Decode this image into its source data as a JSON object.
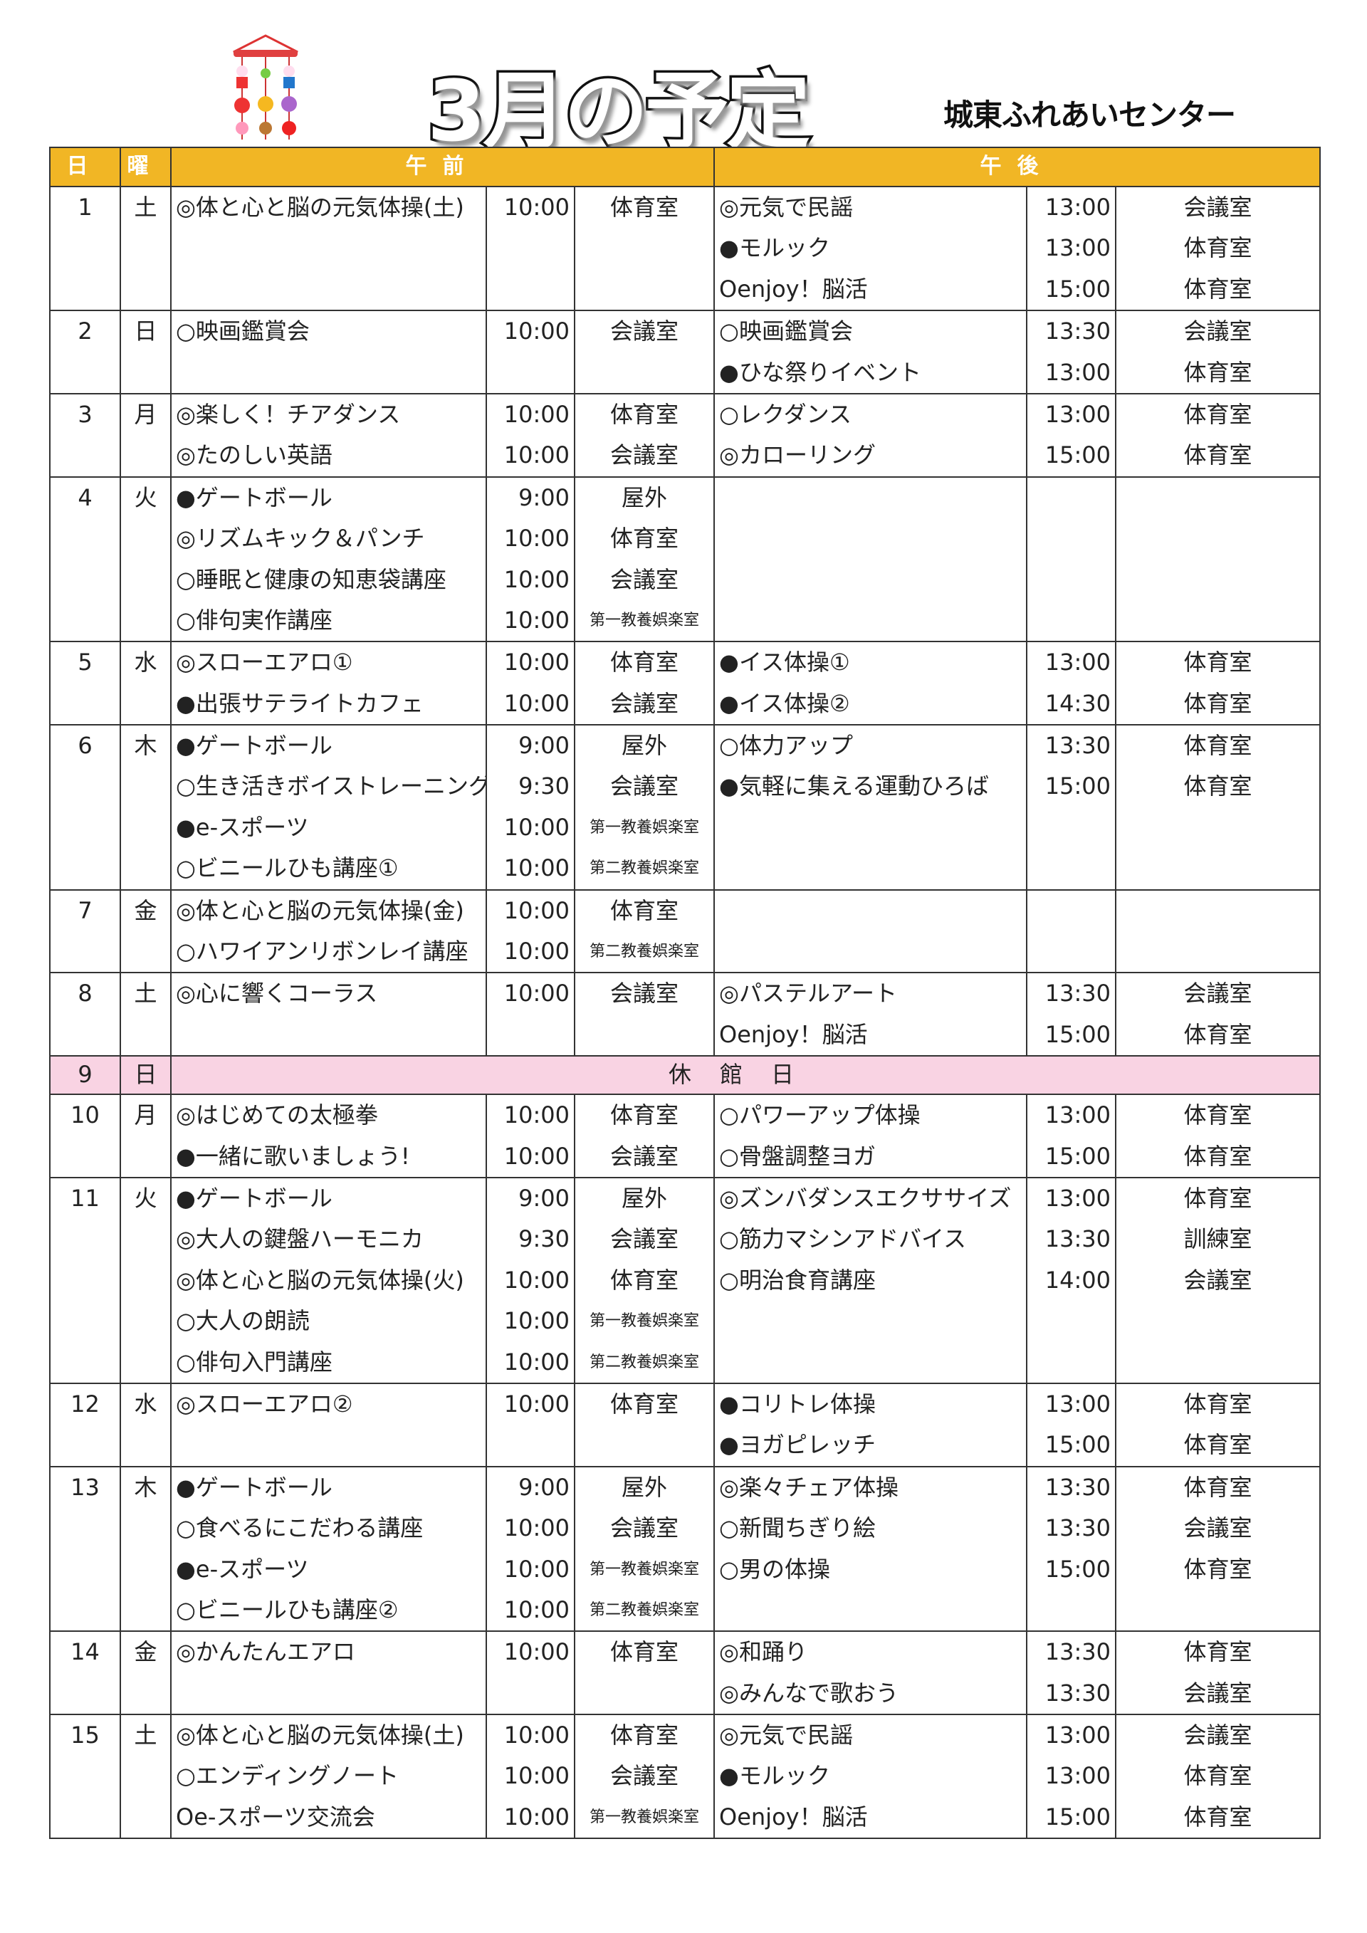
{
  "header": {
    "title": "3月の予定",
    "facility": "城東ふれあいセンター"
  },
  "colors": {
    "header_bg": "#F1B625",
    "closed_bg": "#F9D3E3"
  },
  "columns": {
    "day": "日",
    "dow": "曜",
    "am": "午前",
    "pm": "午後"
  },
  "rows": [
    {
      "day": "1",
      "dow": "土",
      "am": [
        [
          "◎体と心と脳の元気体操(土)",
          "10:00",
          "体育室"
        ]
      ],
      "pm": [
        [
          "◎元気で民謡",
          "13:00",
          "会議室"
        ],
        [
          "●モルック",
          "13:00",
          "体育室"
        ],
        [
          "Oenjoy！脳活",
          "15:00",
          "体育室"
        ]
      ]
    },
    {
      "day": "2",
      "dow": "日",
      "am": [
        [
          "○映画鑑賞会",
          "10:00",
          "会議室"
        ]
      ],
      "pm": [
        [
          "○映画鑑賞会",
          "13:30",
          "会議室"
        ],
        [
          "●ひな祭りイベント",
          "13:00",
          "体育室"
        ]
      ]
    },
    {
      "day": "3",
      "dow": "月",
      "am": [
        [
          "◎楽しく！チアダンス",
          "10:00",
          "体育室"
        ],
        [
          "◎たのしい英語",
          "10:00",
          "会議室"
        ]
      ],
      "pm": [
        [
          "○レクダンス",
          "13:00",
          "体育室"
        ],
        [
          "◎カローリング",
          "15:00",
          "体育室"
        ]
      ]
    },
    {
      "day": "4",
      "dow": "火",
      "am": [
        [
          "●ゲートボール",
          "9:00",
          "屋外"
        ],
        [
          "◎リズムキック＆パンチ",
          "10:00",
          "体育室"
        ],
        [
          "○睡眠と健康の知恵袋講座",
          "10:00",
          "会議室"
        ],
        [
          "○俳句実作講座",
          "10:00",
          "第一教養娯楽室"
        ]
      ],
      "pm": []
    },
    {
      "day": "5",
      "dow": "水",
      "am": [
        [
          "◎スローエアロ①",
          "10:00",
          "体育室"
        ],
        [
          "●出張サテライトカフェ",
          "10:00",
          "会議室"
        ]
      ],
      "pm": [
        [
          "●イス体操①",
          "13:00",
          "体育室"
        ],
        [
          "●イス体操②",
          "14:30",
          "体育室"
        ]
      ]
    },
    {
      "day": "6",
      "dow": "木",
      "am": [
        [
          "●ゲートボール",
          "9:00",
          "屋外"
        ],
        [
          "○生き活きボイストレーニング",
          "9:30",
          "会議室"
        ],
        [
          "●e-スポーツ",
          "10:00",
          "第一教養娯楽室"
        ],
        [
          "○ビニールひも講座①",
          "10:00",
          "第二教養娯楽室"
        ]
      ],
      "pm": [
        [
          "○体力アップ",
          "13:30",
          "体育室"
        ],
        [
          "●気軽に集える運動ひろば",
          "15:00",
          "体育室"
        ]
      ]
    },
    {
      "day": "7",
      "dow": "金",
      "am": [
        [
          "◎体と心と脳の元気体操(金)",
          "10:00",
          "体育室"
        ],
        [
          "○ハワイアンリボンレイ講座",
          "10:00",
          "第二教養娯楽室"
        ]
      ],
      "pm": []
    },
    {
      "day": "8",
      "dow": "土",
      "am": [
        [
          "◎心に響くコーラス",
          "10:00",
          "会議室"
        ]
      ],
      "pm": [
        [
          "◎パステルアート",
          "13:30",
          "会議室"
        ],
        [
          "Oenjoy！脳活",
          "15:00",
          "体育室"
        ]
      ]
    },
    {
      "day": "9",
      "dow": "日",
      "closed": "休館日"
    },
    {
      "day": "10",
      "dow": "月",
      "am": [
        [
          "◎はじめての太極拳",
          "10:00",
          "体育室"
        ],
        [
          "●一緒に歌いましょう!",
          "10:00",
          "会議室"
        ]
      ],
      "pm": [
        [
          "○パワーアップ体操",
          "13:00",
          "体育室"
        ],
        [
          "○骨盤調整ヨガ",
          "15:00",
          "体育室"
        ]
      ]
    },
    {
      "day": "11",
      "dow": "火",
      "am": [
        [
          "●ゲートボール",
          "9:00",
          "屋外"
        ],
        [
          "◎大人の鍵盤ハーモニカ",
          "9:30",
          "会議室"
        ],
        [
          "◎体と心と脳の元気体操(火)",
          "10:00",
          "体育室"
        ],
        [
          "○大人の朗読",
          "10:00",
          "第一教養娯楽室"
        ],
        [
          "○俳句入門講座",
          "10:00",
          "第二教養娯楽室"
        ]
      ],
      "pm": [
        [
          "◎ズンバダンスエクササイズ",
          "13:00",
          "体育室"
        ],
        [
          "○筋力マシンアドバイス",
          "13:30",
          "訓練室"
        ],
        [
          "○明治食育講座",
          "14:00",
          "会議室"
        ]
      ]
    },
    {
      "day": "12",
      "dow": "水",
      "am": [
        [
          "◎スローエアロ②",
          "10:00",
          "体育室"
        ]
      ],
      "pm": [
        [
          "●コリトレ体操",
          "13:00",
          "体育室"
        ],
        [
          "●ヨガピレッチ",
          "15:00",
          "体育室"
        ]
      ]
    },
    {
      "day": "13",
      "dow": "木",
      "am": [
        [
          "●ゲートボール",
          "9:00",
          "屋外"
        ],
        [
          "○食べるにこだわる講座",
          "10:00",
          "会議室"
        ],
        [
          "●e-スポーツ",
          "10:00",
          "第一教養娯楽室"
        ],
        [
          "○ビニールひも講座②",
          "10:00",
          "第二教養娯楽室"
        ]
      ],
      "pm": [
        [
          "◎楽々チェア体操",
          "13:30",
          "体育室"
        ],
        [
          "○新聞ちぎり絵",
          "13:30",
          "会議室"
        ],
        [
          "○男の体操",
          "15:00",
          "体育室"
        ]
      ]
    },
    {
      "day": "14",
      "dow": "金",
      "am": [
        [
          "◎かんたんエアロ",
          "10:00",
          "体育室"
        ]
      ],
      "pm": [
        [
          "◎和踊り",
          "13:30",
          "体育室"
        ],
        [
          "◎みんなで歌おう",
          "13:30",
          "会議室"
        ]
      ]
    },
    {
      "day": "15",
      "dow": "土",
      "am": [
        [
          "◎体と心と脳の元気体操(土)",
          "10:00",
          "体育室"
        ],
        [
          "○エンディングノート",
          "10:00",
          "会議室"
        ],
        [
          "Oe-スポーツ交流会",
          "10:00",
          "第一教養娯楽室"
        ]
      ],
      "pm": [
        [
          "◎元気で民謡",
          "13:00",
          "会議室"
        ],
        [
          "●モルック",
          "13:00",
          "体育室"
        ],
        [
          "Oenjoy！脳活",
          "15:00",
          "体育室"
        ]
      ]
    }
  ]
}
